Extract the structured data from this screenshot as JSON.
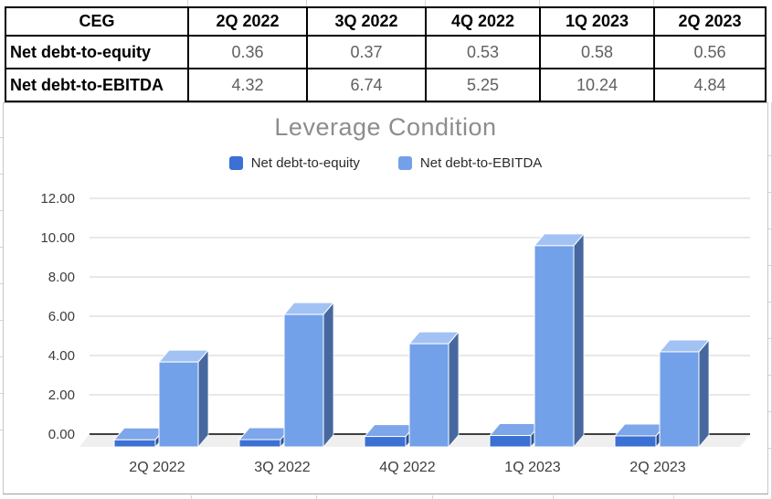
{
  "table": {
    "corner_label": "CEG",
    "header": [
      "CEG",
      "2Q 2022",
      "3Q 2022",
      "4Q 2022",
      "1Q 2023",
      "2Q 2023"
    ],
    "rows": [
      {
        "label": "Net debt-to-equity",
        "values": [
          "0.36",
          "0.37",
          "0.53",
          "0.58",
          "0.56"
        ]
      },
      {
        "label": "Net debt-to-EBITDA",
        "values": [
          "4.32",
          "6.74",
          "5.25",
          "10.24",
          "4.84"
        ]
      }
    ]
  },
  "chart_data": {
    "type": "bar",
    "style": "3d-column",
    "title": "Leverage Condition",
    "categories": [
      "2Q 2022",
      "3Q 2022",
      "4Q 2022",
      "1Q 2023",
      "2Q 2023"
    ],
    "series": [
      {
        "name": "Net debt-to-equity",
        "values": [
          0.36,
          0.37,
          0.53,
          0.58,
          0.56
        ],
        "color": "#3b70d4",
        "top_color": "#7ea6ea",
        "side_color": "#2c5193"
      },
      {
        "name": "Net debt-to-EBITDA",
        "values": [
          4.32,
          6.74,
          5.25,
          10.24,
          4.84
        ],
        "color": "#73a1e9",
        "top_color": "#a3c2f4",
        "side_color": "#47689f"
      }
    ],
    "ylim": [
      0,
      12
    ],
    "ytick_step": 2,
    "ytick_labels": [
      "0.00",
      "2.00",
      "4.00",
      "6.00",
      "8.00",
      "10.00",
      "12.00"
    ],
    "xlabel": "",
    "ylabel": "",
    "legend_position": "top",
    "grid": true,
    "theme": {
      "title_color": "#8d8d8d",
      "axis_text_color": "#3c3c3c",
      "gridline_color": "#e0e0e0",
      "axis_line_color": "#3f3f3f",
      "floor_color": "#efefef",
      "table_value_color": "#606060"
    }
  }
}
